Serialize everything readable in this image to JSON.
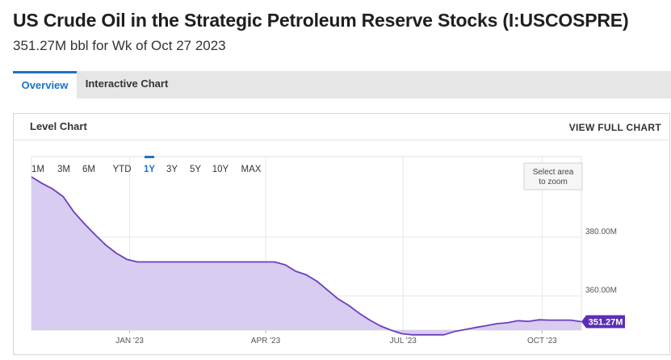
{
  "header": {
    "title": "US Crude Oil in the Strategic Petroleum Reserve Stocks (I:USCOSPRE)",
    "subtitle": "351.27M bbl for Wk of Oct 27 2023"
  },
  "tabs": [
    {
      "label": "Overview",
      "active": true
    },
    {
      "label": "Interactive Chart",
      "active": false
    }
  ],
  "panel": {
    "title": "Level Chart",
    "view_full_label": "VIEW FULL CHART"
  },
  "range_buttons": [
    {
      "label": "1M",
      "active": false
    },
    {
      "label": "3M",
      "active": false
    },
    {
      "label": "6M",
      "active": false
    },
    {
      "label": "YTD",
      "active": false
    },
    {
      "label": "1Y",
      "active": true
    },
    {
      "label": "3Y",
      "active": false
    },
    {
      "label": "5Y",
      "active": false
    },
    {
      "label": "10Y",
      "active": false
    },
    {
      "label": "MAX",
      "active": false
    }
  ],
  "zoom_hint": [
    "Select area",
    "to zoom"
  ],
  "colors": {
    "line": "#6b3fc0",
    "fill": "#d9ccf1",
    "accent": "#1a73c9",
    "last_label_bg": "#5b2fb5"
  },
  "chart_data": {
    "type": "area",
    "title": "",
    "xlabel": "",
    "ylabel": "",
    "x_ticks": [
      {
        "label": "JAN '23",
        "date": "2023-01-01"
      },
      {
        "label": "APR '23",
        "date": "2023-04-01"
      },
      {
        "label": "JUL '23",
        "date": "2023-07-01"
      },
      {
        "label": "OCT '23",
        "date": "2023-10-01"
      }
    ],
    "y_ticks": [
      {
        "label": "360.00M",
        "value": 360
      },
      {
        "label": "380.00M",
        "value": 380
      }
    ],
    "xlim": [
      "2022-10-28",
      "2023-10-27"
    ],
    "ylim": [
      348.4,
      407.4
    ],
    "grid": true,
    "last_value_label": "351.27M",
    "series": [
      {
        "x": [
          "2022-10-28",
          "2022-11-04",
          "2022-11-11",
          "2022-11-18",
          "2022-11-25",
          "2022-12-02",
          "2022-12-09",
          "2022-12-16",
          "2022-12-23",
          "2022-12-30",
          "2023-01-06",
          "2023-01-13",
          "2023-01-20",
          "2023-01-27",
          "2023-02-03",
          "2023-02-10",
          "2023-02-17",
          "2023-02-24",
          "2023-03-03",
          "2023-03-10",
          "2023-03-17",
          "2023-03-24",
          "2023-03-31",
          "2023-04-07",
          "2023-04-14",
          "2023-04-21",
          "2023-04-28",
          "2023-05-05",
          "2023-05-12",
          "2023-05-19",
          "2023-05-26",
          "2023-06-02",
          "2023-06-09",
          "2023-06-16",
          "2023-06-23",
          "2023-06-30",
          "2023-07-07",
          "2023-07-14",
          "2023-07-21",
          "2023-07-28",
          "2023-08-04",
          "2023-08-11",
          "2023-08-18",
          "2023-08-25",
          "2023-09-01",
          "2023-09-08",
          "2023-09-15",
          "2023-09-22",
          "2023-09-29",
          "2023-10-06",
          "2023-10-13",
          "2023-10-20",
          "2023-10-27"
        ],
        "values": [
          400.5,
          398.3,
          396.4,
          393.8,
          388.6,
          384.6,
          380.9,
          377.4,
          374.6,
          372.5,
          371.6,
          371.6,
          371.6,
          371.6,
          371.6,
          371.6,
          371.6,
          371.6,
          371.6,
          371.6,
          371.6,
          371.6,
          371.6,
          371.6,
          370.6,
          368.4,
          367.2,
          365.0,
          362.0,
          359.0,
          356.8,
          354.1,
          351.8,
          349.8,
          348.4,
          347.2,
          346.8,
          346.8,
          346.8,
          346.8,
          347.9,
          348.6,
          349.3,
          349.9,
          350.6,
          350.9,
          351.6,
          351.4,
          351.9,
          351.8,
          351.8,
          351.8,
          351.27
        ]
      }
    ]
  }
}
